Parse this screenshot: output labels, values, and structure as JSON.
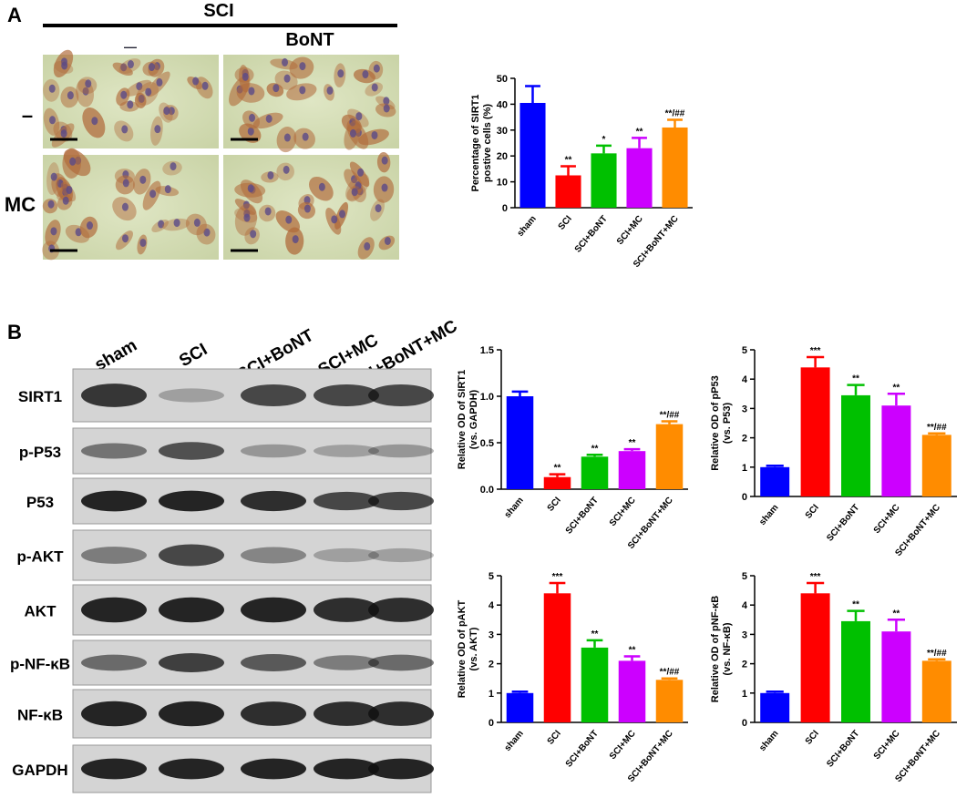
{
  "panel_a": {
    "label": "A",
    "header": "SCI",
    "col_label": "BoNT",
    "col_none": "—",
    "rows": [
      "–",
      "MC"
    ]
  },
  "panel_b": {
    "label": "B",
    "lanes": [
      "sham",
      "SCI",
      "SCI+BoNT",
      "SCI+MC",
      "SCI+BoNT+MC"
    ],
    "blots": [
      "SIRT1",
      "p-P53",
      "P53",
      "p-AKT",
      "AKT",
      "p-NF-κB",
      "NF-κB",
      "GAPDH"
    ]
  },
  "chart_data": [
    {
      "type": "bar",
      "ylabel": [
        "Percentage of SIRT1",
        "postive cells (%)"
      ],
      "categories": [
        "sham",
        "SCI",
        "SCI+BoNT",
        "SCI+MC",
        "SCI+BoNT+MC"
      ],
      "values": [
        40.5,
        12.5,
        21,
        23,
        31
      ],
      "errors": [
        6.5,
        3.5,
        3,
        4,
        3
      ],
      "annotations": [
        null,
        "**",
        "*",
        "**",
        "**/##"
      ],
      "colors": [
        "#0000ff",
        "#ff0000",
        "#00c000",
        "#cc00ff",
        "#ff8c00"
      ],
      "ylim": [
        0,
        50
      ],
      "yticks": [
        0,
        10,
        20,
        30,
        40,
        50
      ]
    },
    {
      "type": "bar",
      "ylabel": [
        "Relative OD of SIRT1",
        "(vs. GAPDH)"
      ],
      "categories": [
        "sham",
        "SCI",
        "SCI+BoNT",
        "SCI+MC",
        "SCI+BoNT+MC"
      ],
      "values": [
        1.0,
        0.13,
        0.35,
        0.41,
        0.7
      ],
      "errors": [
        0.05,
        0.03,
        0.02,
        0.02,
        0.03
      ],
      "annotations": [
        null,
        "**",
        "**",
        "**",
        "**/##"
      ],
      "colors": [
        "#0000ff",
        "#ff0000",
        "#00c000",
        "#cc00ff",
        "#ff8c00"
      ],
      "ylim": [
        0,
        1.5
      ],
      "yticks": [
        {
          "value": 0,
          "label": "0.0"
        },
        0.5,
        {
          "value": 1,
          "label": "1.0"
        },
        1.5
      ]
    },
    {
      "type": "bar",
      "ylabel": [
        "Relative OD of pP53",
        "(vs. P53)"
      ],
      "categories": [
        "sham",
        "SCI",
        "SCI+BoNT",
        "SCI+MC",
        "SCI+BoNT+MC"
      ],
      "values": [
        1.0,
        4.4,
        3.45,
        3.1,
        2.1
      ],
      "errors": [
        0.05,
        0.35,
        0.35,
        0.4,
        0.05
      ],
      "annotations": [
        null,
        "***",
        "**",
        "**",
        "**/##"
      ],
      "colors": [
        "#0000ff",
        "#ff0000",
        "#00c000",
        "#cc00ff",
        "#ff8c00"
      ],
      "ylim": [
        0,
        5
      ],
      "yticks": [
        0,
        1,
        2,
        3,
        4,
        5
      ]
    },
    {
      "type": "bar",
      "ylabel": [
        "Relative OD of pAKT",
        "(vs. AKT)"
      ],
      "categories": [
        "sham",
        "SCI",
        "SCI+BoNT",
        "SCI+MC",
        "SCI+BoNT+MC"
      ],
      "values": [
        1.0,
        4.4,
        2.55,
        2.1,
        1.45
      ],
      "errors": [
        0.05,
        0.35,
        0.25,
        0.15,
        0.05
      ],
      "annotations": [
        null,
        "***",
        "**",
        "**",
        "**/##"
      ],
      "colors": [
        "#0000ff",
        "#ff0000",
        "#00c000",
        "#cc00ff",
        "#ff8c00"
      ],
      "ylim": [
        0,
        5
      ],
      "yticks": [
        0,
        1,
        2,
        3,
        4,
        5
      ]
    },
    {
      "type": "bar",
      "ylabel": [
        "Relative OD of pNF-κB",
        "(vs. NF-κB)"
      ],
      "categories": [
        "sham",
        "SCI",
        "SCI+BoNT",
        "SCI+MC",
        "SCI+BoNT+MC"
      ],
      "values": [
        1.0,
        4.4,
        3.45,
        3.1,
        2.1
      ],
      "errors": [
        0.05,
        0.35,
        0.35,
        0.4,
        0.05
      ],
      "annotations": [
        null,
        "***",
        "**",
        "**",
        "**/##"
      ],
      "colors": [
        "#0000ff",
        "#ff0000",
        "#00c000",
        "#cc00ff",
        "#ff8c00"
      ],
      "ylim": [
        0,
        5
      ],
      "yticks": [
        0,
        1,
        2,
        3,
        4,
        5
      ]
    }
  ]
}
